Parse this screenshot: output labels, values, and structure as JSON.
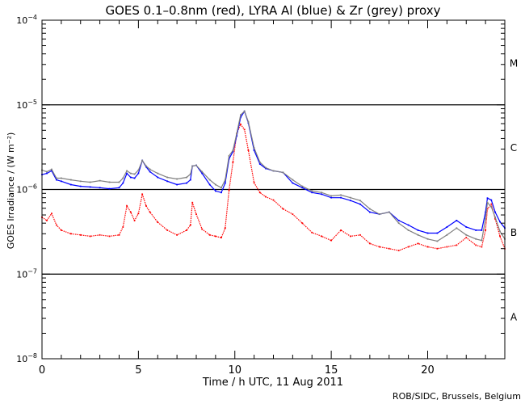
{
  "chart_data": {
    "type": "line",
    "title": "GOES 0.1–0.8nm (red), LYRA Al (blue) & Zr (grey) proxy",
    "xlabel": "Time / h UTC, 11 Aug 2011",
    "ylabel": "GOES Irradiance / (W m⁻²)",
    "yscale": "log",
    "xlim": [
      0,
      24
    ],
    "ylim": [
      1e-08,
      0.0001
    ],
    "xticks": [
      "0",
      "5",
      "10",
      "15",
      "20"
    ],
    "yticks": [
      {
        "base": "10",
        "exp": "−4",
        "value": 0.0001
      },
      {
        "base": "10",
        "exp": "−5",
        "value": 1e-05
      },
      {
        "base": "10",
        "exp": "−6",
        "value": 1e-06
      },
      {
        "base": "10",
        "exp": "−7",
        "value": 1e-07
      },
      {
        "base": "10",
        "exp": "−8",
        "value": 1e-08
      }
    ],
    "flare_classes": [
      {
        "label": "M",
        "low": 1e-05,
        "high": 0.0001
      },
      {
        "label": "C",
        "low": 1e-06,
        "high": 1e-05
      },
      {
        "label": "B",
        "low": 1e-07,
        "high": 1e-06
      },
      {
        "label": "A",
        "low": 1e-08,
        "high": 1e-07
      }
    ],
    "reference_lines": [
      1e-05,
      1e-06,
      1e-07
    ],
    "x": [
      0,
      0.25,
      0.5,
      0.75,
      1,
      1.5,
      2,
      2.5,
      3,
      3.5,
      4,
      4.2,
      4.4,
      4.6,
      4.8,
      5,
      5.2,
      5.4,
      5.6,
      6,
      6.5,
      7,
      7.5,
      7.7,
      7.8,
      8,
      8.3,
      8.7,
      9,
      9.3,
      9.5,
      9.7,
      9.9,
      10.1,
      10.3,
      10.5,
      10.7,
      11,
      11.3,
      11.6,
      12,
      12.5,
      13,
      13.5,
      14,
      14.5,
      15,
      15.5,
      16,
      16.5,
      17,
      17.5,
      18,
      18.5,
      19,
      19.5,
      20,
      20.5,
      21,
      21.5,
      22,
      22.5,
      22.8,
      23,
      23.1,
      23.3,
      23.5,
      23.75,
      24
    ],
    "series": [
      {
        "name": "GOES 0.1-0.8nm",
        "color": "#ff0000",
        "values": [
          4.7e-07,
          4.3e-07,
          5.2e-07,
          3.8e-07,
          3.3e-07,
          3e-07,
          2.9e-07,
          2.8e-07,
          2.9e-07,
          2.8e-07,
          2.9e-07,
          3.6e-07,
          6.4e-07,
          5.4e-07,
          4.3e-07,
          5.2e-07,
          8.8e-07,
          6.4e-07,
          5.4e-07,
          4.1e-07,
          3.3e-07,
          2.9e-07,
          3.3e-07,
          3.8e-07,
          7e-07,
          5.1e-07,
          3.4e-07,
          2.9e-07,
          2.8e-07,
          2.7e-07,
          3.5e-07,
          9.8e-07,
          2.1e-06,
          4.6e-06,
          5.9e-06,
          5.1e-06,
          2.9e-06,
          1.2e-06,
          9.2e-07,
          8.2e-07,
          7.5e-07,
          5.9e-07,
          5.1e-07,
          4e-07,
          3.1e-07,
          2.8e-07,
          2.5e-07,
          3.3e-07,
          2.8e-07,
          2.9e-07,
          2.3e-07,
          2.1e-07,
          2e-07,
          1.9e-07,
          2.1e-07,
          2.3e-07,
          2.1e-07,
          2e-07,
          2.1e-07,
          2.2e-07,
          2.7e-07,
          2.2e-07,
          2.1e-07,
          3.3e-07,
          5.9e-07,
          6.7e-07,
          4.5e-07,
          2.8e-07,
          2e-07
        ]
      },
      {
        "name": "LYRA Al proxy",
        "color": "#0000ff",
        "values": [
          1.5e-06,
          1.55e-06,
          1.66e-06,
          1.3e-06,
          1.25e-06,
          1.14e-06,
          1.09e-06,
          1.07e-06,
          1.05e-06,
          1.02e-06,
          1.05e-06,
          1.19e-06,
          1.55e-06,
          1.39e-06,
          1.36e-06,
          1.55e-06,
          2.2e-06,
          1.85e-06,
          1.62e-06,
          1.39e-06,
          1.25e-06,
          1.14e-06,
          1.19e-06,
          1.3e-06,
          1.89e-06,
          1.93e-06,
          1.55e-06,
          1.14e-06,
          9.6e-07,
          9.2e-07,
          1.19e-06,
          2.3e-06,
          2.8e-06,
          4.3e-06,
          7.1e-06,
          8.4e-06,
          6.1e-06,
          2.9e-06,
          2e-06,
          1.77e-06,
          1.66e-06,
          1.59e-06,
          1.19e-06,
          1.05e-06,
          9.2e-07,
          8.8e-07,
          8e-07,
          8e-07,
          7.4e-07,
          6.7e-07,
          5.4e-07,
          5.1e-07,
          5.4e-07,
          4.3e-07,
          3.8e-07,
          3.3e-07,
          3.05e-07,
          3.05e-07,
          3.6e-07,
          4.3e-07,
          3.6e-07,
          3.3e-07,
          3.3e-07,
          5.4e-07,
          7.9e-07,
          7.5e-07,
          5.4e-07,
          4.15e-07,
          3.5e-07
        ]
      },
      {
        "name": "LYRA Zr proxy",
        "color": "#808080",
        "values": [
          1.69e-06,
          1.62e-06,
          1.73e-06,
          1.36e-06,
          1.36e-06,
          1.3e-06,
          1.25e-06,
          1.22e-06,
          1.27e-06,
          1.22e-06,
          1.22e-06,
          1.36e-06,
          1.66e-06,
          1.55e-06,
          1.52e-06,
          1.69e-06,
          2.2e-06,
          1.89e-06,
          1.73e-06,
          1.55e-06,
          1.39e-06,
          1.33e-06,
          1.39e-06,
          1.52e-06,
          1.89e-06,
          1.93e-06,
          1.62e-06,
          1.3e-06,
          1.14e-06,
          1.05e-06,
          1.3e-06,
          2.5e-06,
          2.9e-06,
          4.6e-06,
          7.6e-06,
          8.4e-06,
          6.3e-06,
          3.1e-06,
          2.1e-06,
          1.81e-06,
          1.66e-06,
          1.59e-06,
          1.3e-06,
          1.09e-06,
          9.6e-07,
          9.2e-07,
          8.4e-07,
          8.6e-07,
          8e-07,
          7.4e-07,
          5.9e-07,
          5.1e-07,
          5.4e-07,
          4e-07,
          3.3e-07,
          2.9e-07,
          2.6e-07,
          2.45e-07,
          2.9e-07,
          3.5e-07,
          2.9e-07,
          2.6e-07,
          2.5e-07,
          4.5e-07,
          7e-07,
          6.2e-07,
          4.7e-07,
          3.2e-07,
          2.6e-07
        ]
      }
    ],
    "grid": false,
    "credit": "ROB/SIDC, Brussels, Belgium"
  }
}
